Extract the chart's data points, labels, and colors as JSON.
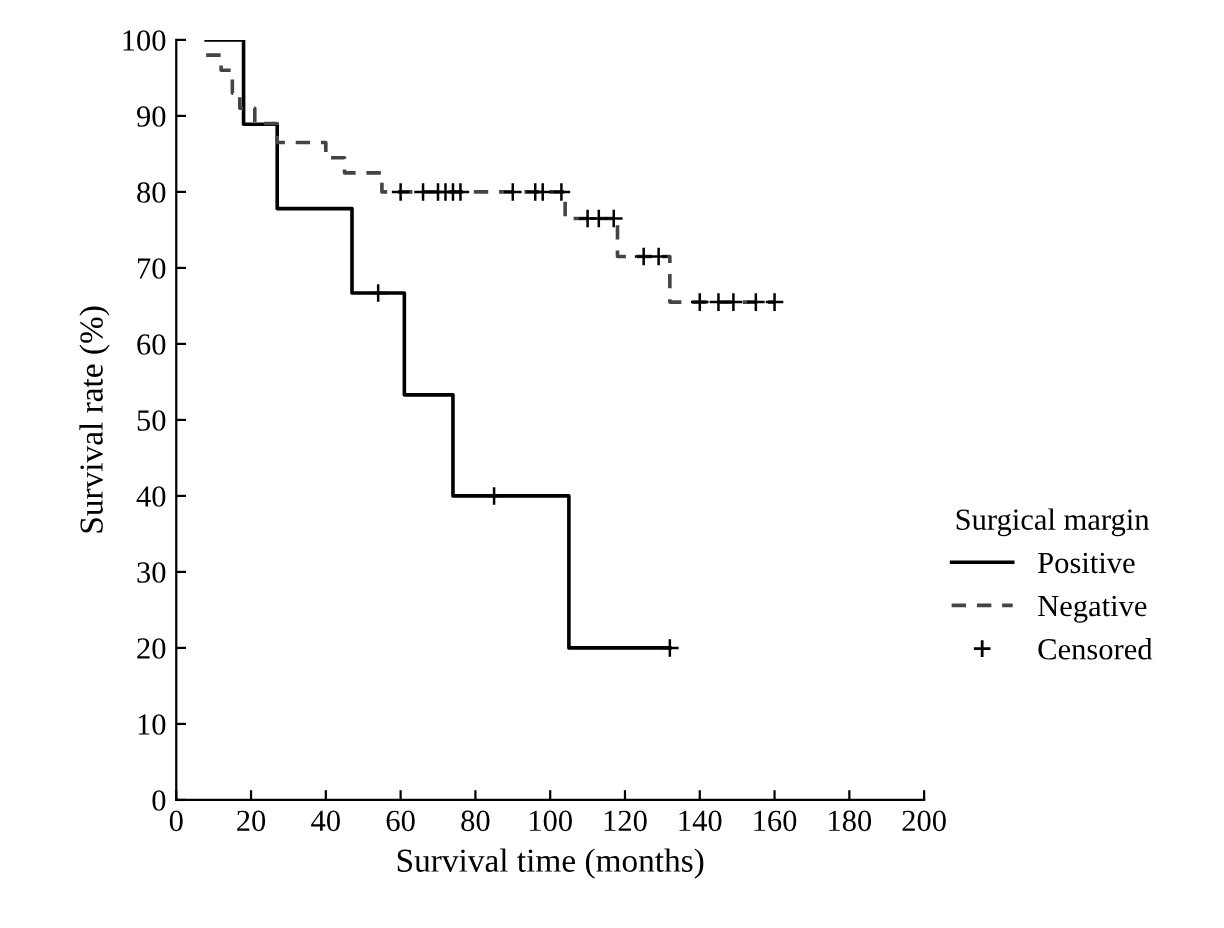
{
  "chart_data": {
    "type": "step",
    "xlabel": "Survival time (months)",
    "ylabel": "Survival rate (%)",
    "legend_title": "Surgical margin",
    "legend": "right",
    "xlim": [
      0,
      200
    ],
    "xticks": [
      0,
      20,
      40,
      60,
      80,
      100,
      120,
      140,
      160,
      180,
      200
    ],
    "ylim": [
      0,
      100
    ],
    "yticks": [
      0,
      10,
      20,
      30,
      40,
      50,
      60,
      70,
      80,
      90,
      100
    ],
    "grid": false,
    "series": [
      {
        "name": "Positive",
        "color": "#000000",
        "line_style": "solid",
        "x": [
          8,
          18,
          27,
          47,
          61,
          74,
          105,
          132
        ],
        "values": [
          100,
          88.9,
          77.8,
          66.7,
          53.3,
          40,
          20,
          20
        ]
      },
      {
        "name": "Negative",
        "color": "#444444",
        "line_style": "dashed",
        "x": [
          8,
          12,
          15,
          17,
          21,
          27,
          40,
          45,
          55,
          104,
          118,
          132,
          160
        ],
        "values": [
          98,
          96,
          93,
          91,
          89,
          86.5,
          84.5,
          82.5,
          80,
          76.5,
          71.5,
          65.5,
          65.5
        ]
      },
      {
        "name": "Censored",
        "type": "scatter",
        "color": "#000000",
        "marker": "cross",
        "x": [
          54,
          85,
          132,
          60,
          66,
          70,
          72,
          74,
          76,
          90,
          96,
          98,
          103,
          110,
          113,
          117,
          125,
          129,
          140,
          145,
          149,
          155,
          160
        ],
        "values": [
          66.7,
          40,
          20,
          80,
          80,
          80,
          80,
          80,
          80,
          80,
          80,
          80,
          80,
          76.5,
          76.5,
          76.5,
          71.5,
          71.5,
          65.5,
          65.5,
          65.5,
          65.5,
          65.5
        ]
      }
    ]
  }
}
